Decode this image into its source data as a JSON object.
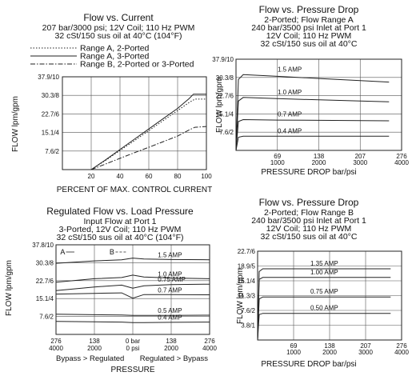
{
  "chart_data": [
    {
      "type": "line",
      "title": "Flow vs. Current",
      "subtitle": [
        "207 bar/3000 psi; 12V Coil; 110 Hz PWM",
        "32 cSt/150 sus oil at 40°C (104°F)"
      ],
      "xlabel": "PERCENT OF MAX. CONTROL CURRENT",
      "ylabel": "FLOW lpm/gpm",
      "xlim": [
        0,
        100
      ],
      "ylim": [
        0,
        37.9
      ],
      "x_ticks": [
        "20",
        "40",
        "60",
        "80",
        "100"
      ],
      "y_ticks": [
        "37.9/10",
        "30.3/8",
        "22.7/6",
        "15.1/4",
        "7.6/2"
      ],
      "legend_position": "top",
      "grid": true,
      "series": [
        {
          "name": "Range A, 2-Ported",
          "style": "dotted",
          "x": [
            20,
            30,
            40,
            50,
            60,
            70,
            80,
            88,
            92,
            100
          ],
          "y": [
            0,
            3.8,
            7.8,
            11.8,
            15.9,
            20.0,
            24.1,
            27.4,
            28.8,
            28.8
          ]
        },
        {
          "name": "Range A, 3-Ported",
          "style": "solid",
          "x": [
            20,
            30,
            40,
            50,
            60,
            70,
            80,
            88,
            91,
            100
          ],
          "y": [
            0,
            4.0,
            8.2,
            12.4,
            16.6,
            20.8,
            25.0,
            29.0,
            30.8,
            30.8
          ]
        },
        {
          "name": "Range B, 2-Ported or 3-Ported",
          "style": "dashdot",
          "x": [
            20,
            30,
            40,
            50,
            60,
            70,
            80,
            88,
            92,
            100
          ],
          "y": [
            0,
            2.3,
            4.6,
            6.9,
            9.1,
            11.4,
            13.7,
            16.2,
            17.3,
            17.6
          ]
        }
      ]
    },
    {
      "type": "line",
      "title": "Flow vs. Pressure Drop",
      "subtitle": [
        "2-Ported; Flow Range A",
        "240 bar/3500 psi Inlet at Port 1",
        "12V Coil; 110 Hz PWM",
        "32 cSt/150 sus oil at 40°C"
      ],
      "xlabel": "PRESSURE DROP bar/psi",
      "ylabel": "FLOW lpm/gpm",
      "xlim": [
        0,
        276
      ],
      "ylim": [
        0,
        37.9
      ],
      "x_ticks": [
        "69\n1000",
        "138\n2000",
        "207\n3000",
        "276\n4000"
      ],
      "y_ticks": [
        "37.9/10",
        "30.3/8",
        "22.7/6",
        "15.1/4",
        "7.6/2"
      ],
      "grid": true,
      "series": [
        {
          "name": "1.5 AMP",
          "x": [
            0,
            4,
            12,
            69,
            138,
            207,
            255
          ],
          "y": [
            0,
            29.5,
            31.5,
            30.8,
            29.9,
            29.0,
            28.4
          ]
        },
        {
          "name": "1.0 AMP",
          "x": [
            0,
            4,
            12,
            69,
            138,
            207,
            255
          ],
          "y": [
            0,
            20.5,
            22.0,
            21.5,
            21.0,
            20.5,
            20.2
          ]
        },
        {
          "name": "0.7 AMP",
          "x": [
            0,
            4,
            12,
            69,
            138,
            207,
            255
          ],
          "y": [
            0,
            12.0,
            12.8,
            12.6,
            12.5,
            12.4,
            12.3
          ]
        },
        {
          "name": "0.4 AMP",
          "x": [
            0,
            4,
            12,
            69,
            138,
            207,
            255
          ],
          "y": [
            0,
            5.5,
            5.9,
            5.9,
            5.9,
            5.9,
            5.9
          ]
        }
      ]
    },
    {
      "type": "line",
      "title": "Regulated Flow vs. Load Pressure",
      "subtitle": [
        "Input Flow at Port 1",
        "3-Ported, 12V Coil; 110 Hz PWM",
        "32 cSt/150 sus oil at 40°C (104°F)"
      ],
      "xlabel": "PRESSURE",
      "xlabel_left": "Bypass > Regulated",
      "xlabel_right": "Regulated > Bypass",
      "ylabel": "FLOW lpm/gpm",
      "xlim": [
        -276,
        276
      ],
      "ylim": [
        0,
        37.8
      ],
      "x_ticks": [
        "276\n4000",
        "138\n2000",
        "0 bar\n0 psi",
        "138\n2000",
        "276\n4000"
      ],
      "y_ticks": [
        "37.8/10",
        "30.3/8",
        "22.7/6",
        "15.1/4",
        "7.6/2"
      ],
      "annotations": [
        "A",
        "B"
      ],
      "grid": true,
      "series": [
        {
          "name": "1.5 AMP",
          "x": [
            -276,
            -138,
            -40,
            0,
            40,
            138,
            276
          ],
          "y": [
            30.0,
            31.0,
            31.5,
            32.2,
            31.8,
            31.6,
            31.5
          ]
        },
        {
          "name": "1.0 AMP",
          "x": [
            -276,
            -138,
            -40,
            0,
            40,
            138,
            276
          ],
          "y": [
            22.0,
            23.5,
            24.0,
            25.0,
            24.2,
            23.8,
            23.5
          ]
        },
        {
          "name": "0.75 AMP",
          "x": [
            -276,
            -138,
            -40,
            0,
            40,
            138,
            276
          ],
          "y": [
            18.5,
            20.0,
            20.8,
            19.5,
            20.5,
            21.0,
            21.2
          ]
        },
        {
          "name": "0.7 AMP",
          "x": [
            -276,
            -138,
            -40,
            0,
            40,
            138,
            276
          ],
          "y": [
            17.0,
            17.3,
            17.5,
            15.3,
            16.8,
            16.8,
            16.7
          ]
        },
        {
          "name": "0.5 AMP",
          "x": [
            -276,
            -138,
            -40,
            0,
            40,
            138,
            276
          ],
          "y": [
            8.5,
            8.3,
            8.2,
            8.0,
            8.0,
            8.0,
            8.1
          ]
        },
        {
          "name": "0.4 AMP",
          "x": [
            -276,
            -138,
            -40,
            0,
            40,
            138,
            276
          ],
          "y": [
            5.5,
            5.3,
            5.2,
            5.0,
            5.0,
            5.1,
            5.2
          ]
        }
      ]
    },
    {
      "type": "line",
      "title": "Flow vs. Pressure Drop",
      "subtitle": [
        "2-Ported; Flow Range B",
        "240 bar/3500 psi Inlet at Port 1",
        "12V Coil; 110 Hz PWM",
        "32 cSt/150 sus oil at 40°C"
      ],
      "xlabel": "PRESSURE DROP bar/psi",
      "ylabel": "FLOW lpm/gpm",
      "xlim": [
        0,
        276
      ],
      "ylim": [
        0,
        22.7
      ],
      "x_ticks": [
        "69\n1000",
        "138\n2000",
        "207\n3000",
        "276\n4000"
      ],
      "y_ticks": [
        "22.7/6",
        "18.9/5",
        "15.1/4",
        "11.3/3",
        "7.6/2",
        "3.8/1"
      ],
      "grid": true,
      "series": [
        {
          "name": "1.35 AMP",
          "x": [
            0,
            3,
            10,
            69,
            138,
            207,
            255
          ],
          "y": [
            0,
            17.5,
            18.2,
            18.2,
            18.2,
            18.2,
            18.2
          ]
        },
        {
          "name": "1.00 AMP",
          "x": [
            0,
            3,
            10,
            69,
            138,
            207,
            255
          ],
          "y": [
            0,
            15.5,
            16.0,
            16.0,
            16.0,
            16.0,
            16.0
          ]
        },
        {
          "name": "0.75 AMP",
          "x": [
            0,
            3,
            10,
            69,
            138,
            207,
            255
          ],
          "y": [
            0,
            10.5,
            11.0,
            11.0,
            11.0,
            11.0,
            11.0
          ]
        },
        {
          "name": "0.50 AMP",
          "x": [
            0,
            3,
            10,
            69,
            138,
            207,
            255
          ],
          "y": [
            0,
            6.5,
            6.8,
            6.8,
            6.8,
            6.8,
            6.8
          ]
        }
      ]
    }
  ]
}
